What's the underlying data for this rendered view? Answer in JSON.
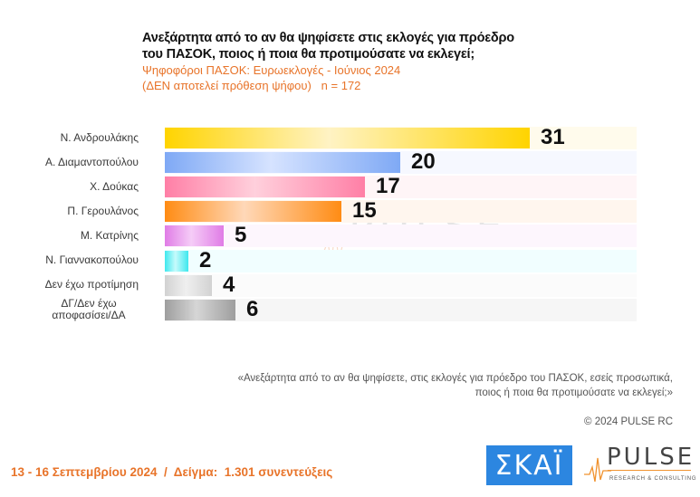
{
  "header": {
    "title_line1": "Ανεξάρτητα από το αν θα ψηφίσετε στις εκλογές για πρόεδρο",
    "title_line2": "του ΠΑΣΟΚ, ποιος ή ποια θα προτιμούσατε να εκλεγεί;",
    "subtitle_line1": "Ψηφοφόροι ΠΑΣΟΚ: Ευρωεκλογές - Ιούνιος 2024",
    "subtitle_line2": "(ΔΕΝ αποτελεί πρόθεση ψήφου)   n = 172"
  },
  "chart_data": {
    "type": "bar",
    "orientation": "horizontal",
    "title": "Ανεξάρτητα από το αν θα ψηφίσετε στις εκλογές για πρόεδρο του ΠΑΣΟΚ, ποιος ή ποια θα προτιμούσατε να εκλεγεί;",
    "subtitle": "Ψηφοφόροι ΠΑΣΟΚ: Ευρωεκλογές - Ιούνιος 2024 (ΔΕΝ αποτελεί πρόθεση ψήφου) n = 172",
    "categories": [
      "Ν. Ανδρουλάκης",
      "Α. Διαμαντοπούλου",
      "Χ. Δούκας",
      "Π. Γερουλάνος",
      "Μ. Κατρίνης",
      "Ν. Γιαννακοπούλου",
      "Δεν έχω προτίμηση",
      "ΔΓ/Δεν έχω αποφασίσει/ΔΑ"
    ],
    "values": [
      31,
      20,
      17,
      15,
      5,
      2,
      4,
      6
    ],
    "unit": "%",
    "xlabel": "",
    "ylabel": "",
    "xlim": [
      0,
      40
    ],
    "grid": false,
    "legend": null
  },
  "rows": [
    {
      "label": "Ν. Ανδρουλάκης",
      "value": "31",
      "pct": 31,
      "color_a": "#ffd400",
      "color_b": "#fff3c4",
      "track": "#fffbec"
    },
    {
      "label": "Α. Διαμαντοπούλου",
      "value": "20",
      "pct": 20,
      "color_a": "#7fa9f5",
      "color_b": "#d6e3ff",
      "track": "#f6f8ff"
    },
    {
      "label": "Χ. Δούκας",
      "value": "17",
      "pct": 17,
      "color_a": "#ff7fa6",
      "color_b": "#ffd0dc",
      "track": "#fff5f7"
    },
    {
      "label": "Π. Γερουλάνος",
      "value": "15",
      "pct": 15,
      "color_a": "#ff8c14",
      "color_b": "#ffd8b8",
      "track": "#fff6ee"
    },
    {
      "label": "Μ. Κατρίνης",
      "value": "5",
      "pct": 5,
      "color_a": "#e07ce6",
      "color_b": "#f5ccf7",
      "track": "#fdf6fd"
    },
    {
      "label": "Ν. Γιαννακοπούλου",
      "value": "2",
      "pct": 2,
      "color_a": "#3ee8ee",
      "color_b": "#c6fbfc",
      "track": "#f1feff"
    },
    {
      "label": "Δεν έχω προτίμηση",
      "value": "4",
      "pct": 4,
      "color_a": "#d2d2d2",
      "color_b": "#efefef",
      "track": "#fbfbfb"
    },
    {
      "label": "ΔΓ/Δεν έχω αποφασίσει/ΔΑ",
      "value": "6",
      "pct": 6,
      "color_a": "#9e9e9e",
      "color_b": "#d6d6d6",
      "track": "#f6f6f6"
    }
  ],
  "watermark": {
    "word": "PULSE",
    "sub": "RESEARCH & CONSULTING"
  },
  "footer": {
    "question_line1": "«Ανεξάρτητα από το αν θα ψηφίσετε, στις εκλογές για πρόεδρο του ΠΑΣΟΚ, εσείς προσωπικά,",
    "question_line2": "ποιος ή ποια θα προτιμούσατε να εκλεγεί;»",
    "copyright": "© 2024 PULSE RC",
    "fieldwork": "13 - 16 Σεπτεμβρίου 2024  /  Δείγμα:  1.301 συνεντεύξεις"
  },
  "logos": {
    "skai": "ΣΚΑΪ",
    "pulse": "PULSE",
    "pulse_sub": "RESEARCH & CONSULTING"
  },
  "colors": {
    "accent_orange": "#e8742a",
    "skai_blue": "#2c86e0",
    "title_text": "#111111"
  }
}
